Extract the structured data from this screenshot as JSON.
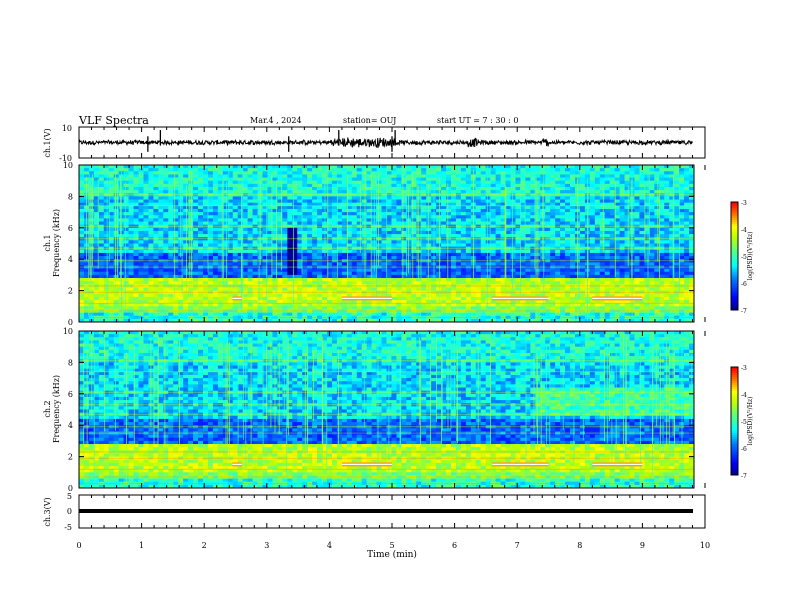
{
  "header": {
    "title": "VLF Spectra",
    "date": "Mar.4 , 2024",
    "station": "station= OUJ",
    "start_ut": "start UT = 7 : 30 : 0"
  },
  "chart_data": [
    {
      "id": "ch1-waveform",
      "type": "line",
      "ylabel": "ch.1(V)",
      "ylim": [
        -10,
        10
      ],
      "yticks": [
        10,
        -10
      ],
      "xlim": [
        0,
        10
      ]
    },
    {
      "id": "ch1-spectrogram",
      "type": "heatmap",
      "ylabel": "ch.1\nFrequency (kHz)",
      "ylabel_line1": "ch.1",
      "ylabel_line2": "Frequency (kHz)",
      "ylim": [
        0,
        10
      ],
      "yticks": [
        0,
        2,
        4,
        6,
        8,
        10
      ],
      "xlim": [
        0,
        10
      ],
      "colorbar": {
        "label": "log(PSD)(V²/Hz)",
        "range": [
          -7,
          -3
        ],
        "ticks": [
          "-3",
          "-4",
          "-5",
          "-6",
          "-7"
        ]
      }
    },
    {
      "id": "ch2-spectrogram",
      "type": "heatmap",
      "ylabel": "ch.2\nFrequency (kHz)",
      "ylabel_line1": "ch.2",
      "ylabel_line2": "Frequency (kHz)",
      "ylim": [
        0,
        10
      ],
      "yticks": [
        0,
        2,
        4,
        6,
        8,
        10
      ],
      "xlim": [
        0,
        10
      ],
      "colorbar": {
        "label": "log(PSD)(V²/Hz)",
        "range": [
          -7,
          -3
        ],
        "ticks": [
          "-3",
          "-4",
          "-5",
          "-6",
          "-7"
        ]
      }
    },
    {
      "id": "ch3-waveform",
      "type": "line",
      "ylabel": "ch.3(V)",
      "ylim": [
        -5,
        5
      ],
      "yticks": [
        5,
        0,
        -5
      ],
      "xlim": [
        0,
        10
      ],
      "xlabel": "Time (min)",
      "xticks": [
        "0",
        "1",
        "2",
        "3",
        "4",
        "5",
        "6",
        "7",
        "8",
        "9",
        "10"
      ]
    }
  ],
  "colormap": [
    "#00007f",
    "#0000ff",
    "#007fff",
    "#00ffff",
    "#7fff7f",
    "#ffff00",
    "#ff7f00",
    "#ff0000",
    "#7f0000",
    "#ffffff"
  ]
}
